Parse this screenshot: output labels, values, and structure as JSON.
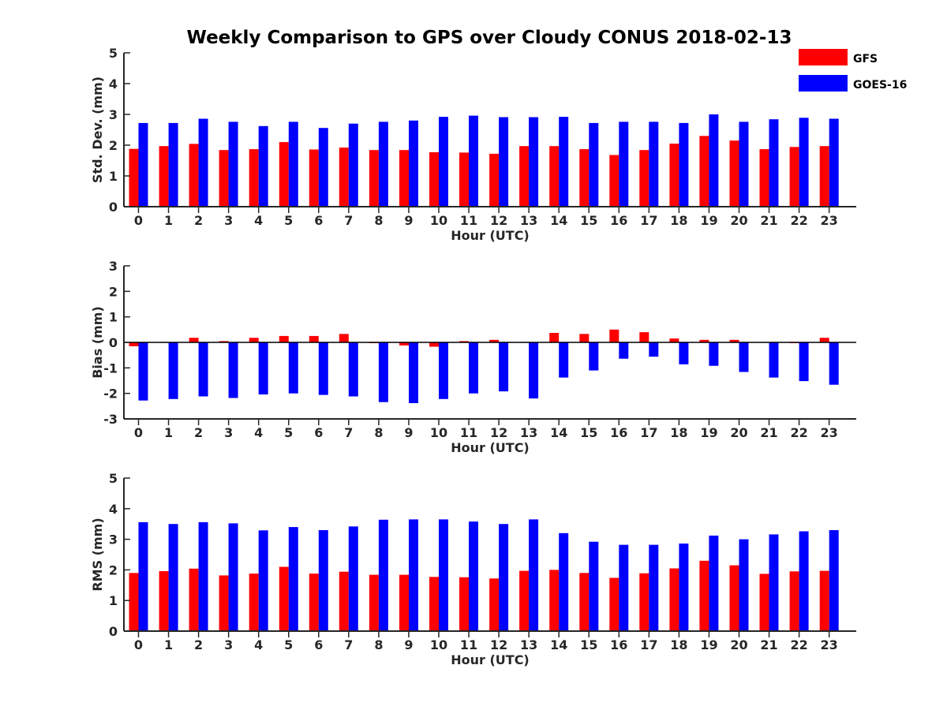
{
  "title": "Weekly Comparison to GPS over Cloudy CONUS 2018-02-13",
  "legend": {
    "placement": "top-right",
    "entries": [
      {
        "label": "GFS",
        "color": "#ff0000"
      },
      {
        "label": "GOES-16",
        "color": "#0000ff"
      }
    ]
  },
  "chart_data": [
    {
      "type": "bar",
      "xlabel": "Hour (UTC)",
      "ylabel": "Std. Dev. (mm)",
      "ylim": [
        0,
        5
      ],
      "yticks": [
        "0",
        "1",
        "2",
        "3",
        "4",
        "5"
      ],
      "categories": [
        "0",
        "1",
        "2",
        "3",
        "4",
        "5",
        "6",
        "7",
        "8",
        "9",
        "10",
        "11",
        "12",
        "13",
        "14",
        "15",
        "16",
        "17",
        "18",
        "19",
        "20",
        "21",
        "22",
        "23"
      ],
      "series": [
        {
          "name": "GFS",
          "color": "#ff0000",
          "values": [
            1.88,
            1.97,
            2.04,
            1.84,
            1.87,
            2.1,
            1.86,
            1.92,
            1.84,
            1.84,
            1.77,
            1.76,
            1.72,
            1.97,
            1.97,
            1.87,
            1.68,
            1.84,
            2.05,
            2.3,
            2.15,
            1.87,
            1.94,
            1.97
          ]
        },
        {
          "name": "GOES-16",
          "color": "#0000ff",
          "values": [
            2.72,
            2.72,
            2.86,
            2.76,
            2.62,
            2.76,
            2.56,
            2.7,
            2.76,
            2.8,
            2.92,
            2.96,
            2.91,
            2.91,
            2.92,
            2.72,
            2.76,
            2.76,
            2.72,
            3.0,
            2.76,
            2.84,
            2.89,
            2.86
          ]
        }
      ]
    },
    {
      "type": "bar",
      "xlabel": "Hour (UTC)",
      "ylabel": "Bias (mm)",
      "ylim": [
        -3,
        3
      ],
      "yticks": [
        "-3",
        "-2",
        "-1",
        "0",
        "1",
        "2",
        "3"
      ],
      "zero_line": true,
      "categories": [
        "0",
        "1",
        "2",
        "3",
        "4",
        "5",
        "6",
        "7",
        "8",
        "9",
        "10",
        "11",
        "12",
        "13",
        "14",
        "15",
        "16",
        "17",
        "18",
        "19",
        "20",
        "21",
        "22",
        "23"
      ],
      "series": [
        {
          "name": "GFS",
          "color": "#ff0000",
          "values": [
            -0.15,
            0.0,
            0.18,
            0.05,
            0.18,
            0.25,
            0.25,
            0.33,
            -0.03,
            -0.12,
            -0.17,
            0.05,
            0.1,
            0.0,
            0.37,
            0.33,
            0.5,
            0.4,
            0.15,
            0.1,
            0.1,
            0.0,
            -0.03,
            0.18
          ]
        },
        {
          "name": "GOES-16",
          "color": "#0000ff",
          "values": [
            -2.28,
            -2.22,
            -2.12,
            -2.18,
            -2.04,
            -2.0,
            -2.06,
            -2.12,
            -2.34,
            -2.38,
            -2.22,
            -2.0,
            -1.92,
            -2.2,
            -1.38,
            -1.1,
            -0.64,
            -0.56,
            -0.86,
            -0.92,
            -1.16,
            -1.38,
            -1.52,
            -1.66
          ]
        }
      ]
    },
    {
      "type": "bar",
      "xlabel": "Hour (UTC)",
      "ylabel": "RMS (mm)",
      "ylim": [
        0,
        5
      ],
      "yticks": [
        "0",
        "1",
        "2",
        "3",
        "4",
        "5"
      ],
      "categories": [
        "0",
        "1",
        "2",
        "3",
        "4",
        "5",
        "6",
        "7",
        "8",
        "9",
        "10",
        "11",
        "12",
        "13",
        "14",
        "15",
        "16",
        "17",
        "18",
        "19",
        "20",
        "21",
        "22",
        "23"
      ],
      "series": [
        {
          "name": "GFS",
          "color": "#ff0000",
          "values": [
            1.9,
            1.96,
            2.04,
            1.82,
            1.88,
            2.1,
            1.88,
            1.94,
            1.84,
            1.84,
            1.77,
            1.76,
            1.72,
            1.97,
            2.0,
            1.9,
            1.74,
            1.89,
            2.05,
            2.3,
            2.15,
            1.87,
            1.95,
            1.97
          ]
        },
        {
          "name": "GOES-16",
          "color": "#0000ff",
          "values": [
            3.56,
            3.5,
            3.56,
            3.52,
            3.29,
            3.4,
            3.3,
            3.42,
            3.64,
            3.65,
            3.65,
            3.58,
            3.5,
            3.65,
            3.2,
            2.92,
            2.82,
            2.82,
            2.86,
            3.12,
            3.0,
            3.16,
            3.26,
            3.3
          ]
        }
      ]
    }
  ]
}
